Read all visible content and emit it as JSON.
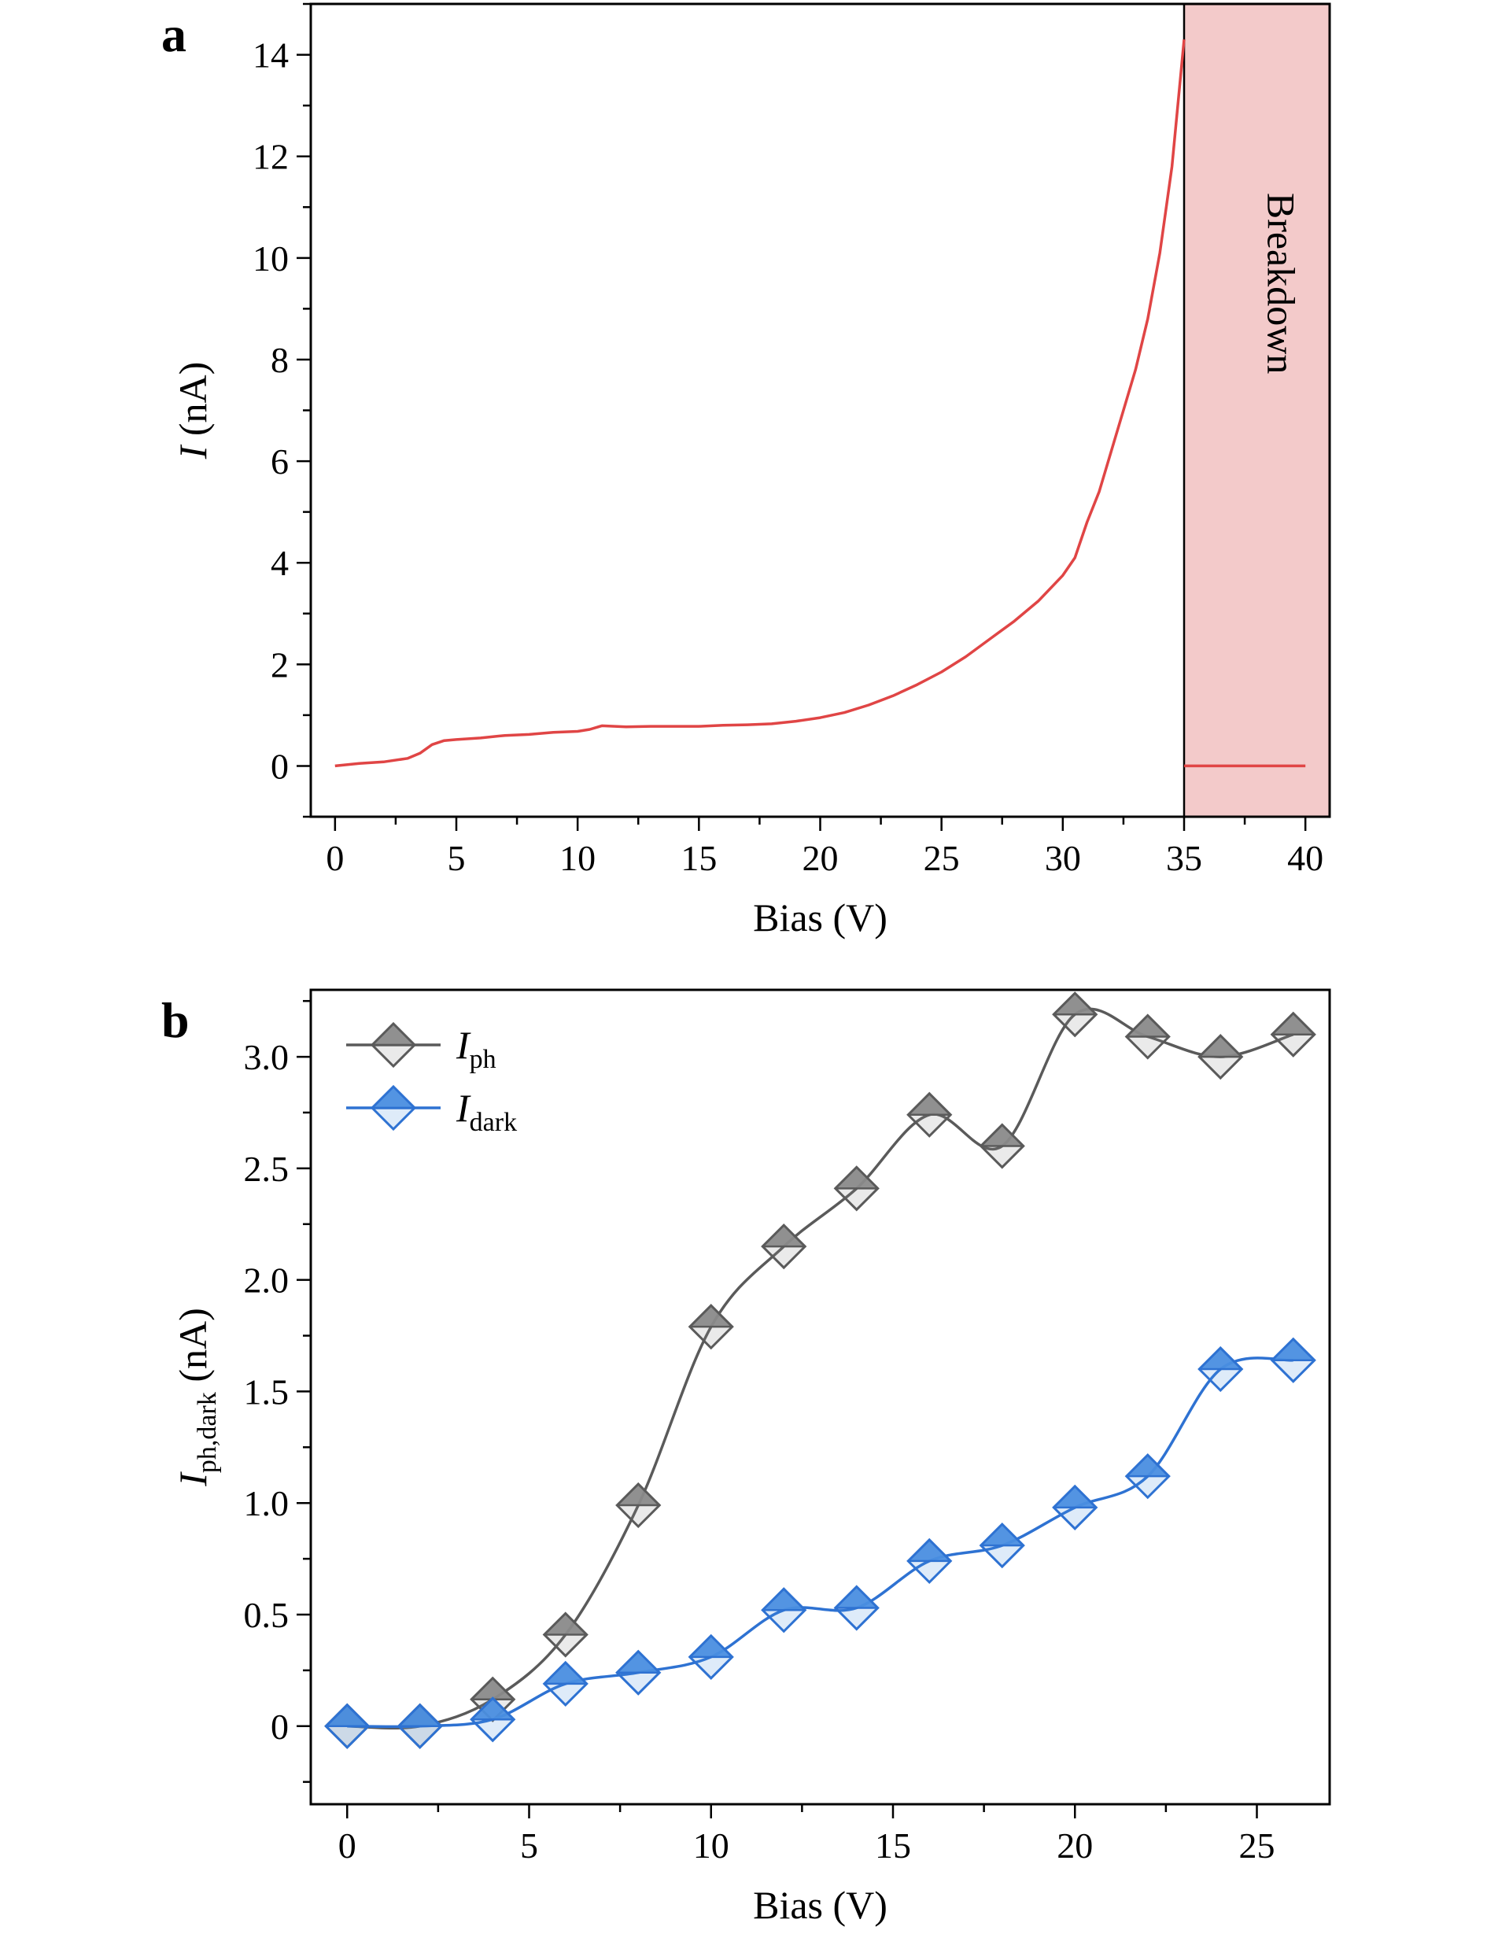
{
  "chart_data": [
    {
      "panel_label": "a",
      "type": "line",
      "xlabel": "Bias (V)",
      "ylabel": {
        "symbol": "I",
        "rest": " (nA)"
      },
      "xlim": [
        -1,
        41
      ],
      "ylim": [
        -1,
        15
      ],
      "x_ticks": [
        "0",
        "5",
        "10",
        "15",
        "20",
        "25",
        "30",
        "35",
        "40"
      ],
      "y_ticks": [
        "0",
        "2",
        "4",
        "6",
        "8",
        "10",
        "12",
        "14"
      ],
      "colors": {
        "line": "#e04545",
        "band": "#f3caca"
      },
      "annotation": {
        "text": "Breakdown",
        "x_range": [
          35,
          41
        ]
      },
      "series": [
        {
          "x": [
            0,
            1,
            2,
            3,
            3.5,
            4,
            4.5,
            5,
            6,
            7,
            8,
            9,
            10,
            10.5,
            11,
            12,
            13,
            14,
            15,
            16,
            17,
            18,
            19,
            20,
            21,
            22,
            23,
            24,
            25,
            26,
            27,
            28,
            28.5,
            29,
            30,
            30.5,
            31,
            31.5,
            32,
            32.5,
            33,
            33.5,
            34,
            34.5,
            35
          ],
          "y": [
            0,
            0.05,
            0.08,
            0.15,
            0.25,
            0.42,
            0.5,
            0.52,
            0.55,
            0.6,
            0.62,
            0.66,
            0.68,
            0.72,
            0.79,
            0.77,
            0.78,
            0.78,
            0.78,
            0.8,
            0.81,
            0.83,
            0.88,
            0.95,
            1.05,
            1.2,
            1.38,
            1.6,
            1.85,
            2.15,
            2.5,
            2.85,
            3.05,
            3.25,
            3.75,
            4.1,
            4.8,
            5.4,
            6.2,
            7.0,
            7.8,
            8.8,
            10.1,
            11.8,
            14.3
          ]
        },
        {
          "x": [
            35,
            40
          ],
          "y": [
            0,
            0
          ]
        }
      ]
    },
    {
      "panel_label": "b",
      "type": "line",
      "xlabel": "Bias (V)",
      "ylabel": {
        "symbol": "I",
        "sub": "ph,dark",
        "rest": " (nA)"
      },
      "xlim": [
        -1,
        27
      ],
      "ylim": [
        -0.35,
        3.3
      ],
      "x_ticks": [
        "0",
        "5",
        "10",
        "15",
        "20",
        "25"
      ],
      "y_ticks": [
        "0",
        "0.5",
        "1.0",
        "1.5",
        "2.0",
        "2.5",
        "3.0"
      ],
      "legend_position": "top-left",
      "series": [
        {
          "name": {
            "symbol": "I",
            "sub": "ph"
          },
          "color": "#5a5a5a",
          "fill": "#8a8a8a",
          "x": [
            0,
            2,
            4,
            6,
            8,
            10,
            12,
            14,
            16,
            18,
            20,
            22,
            24,
            26
          ],
          "y": [
            0,
            0,
            0.12,
            0.41,
            0.99,
            1.79,
            2.15,
            2.41,
            2.74,
            2.6,
            3.19,
            3.09,
            3.0,
            3.1
          ]
        },
        {
          "name": {
            "symbol": "I",
            "sub": "dark"
          },
          "color": "#2e72d2",
          "fill": "#4a8ee0",
          "x": [
            0,
            2,
            4,
            6,
            8,
            10,
            12,
            14,
            16,
            18,
            20,
            22,
            24,
            26
          ],
          "y": [
            0,
            0,
            0.03,
            0.19,
            0.24,
            0.31,
            0.52,
            0.53,
            0.74,
            0.81,
            0.98,
            1.12,
            1.6,
            1.64
          ]
        }
      ]
    }
  ]
}
